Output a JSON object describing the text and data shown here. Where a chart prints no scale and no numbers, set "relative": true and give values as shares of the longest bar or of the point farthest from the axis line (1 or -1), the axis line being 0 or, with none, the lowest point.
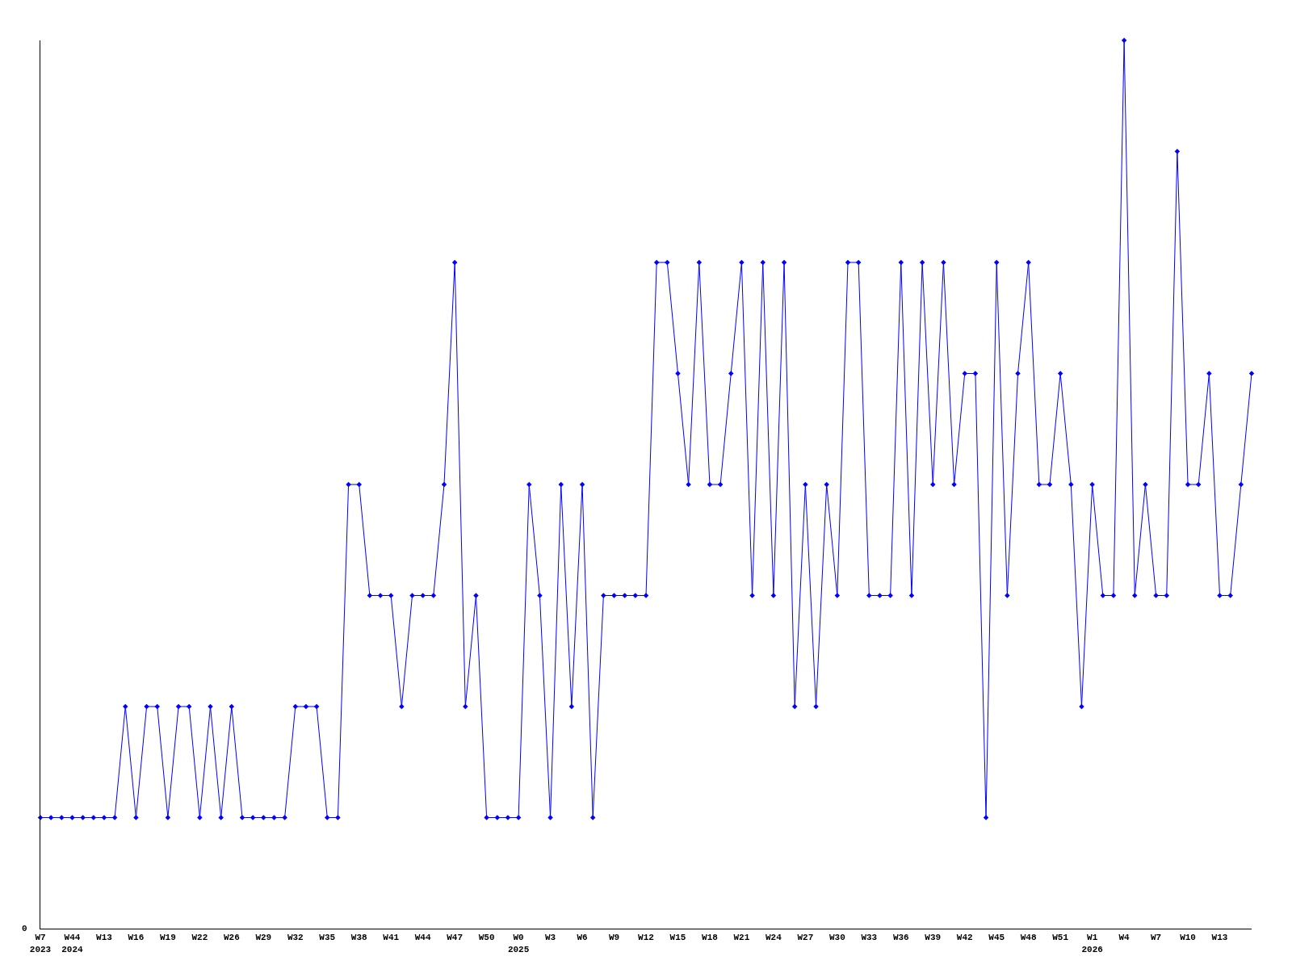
{
  "chart_data": {
    "type": "line",
    "relative": true,
    "categories": [
      "W7\n2023",
      null,
      null,
      "W44\n2024",
      null,
      null,
      "W13",
      null,
      null,
      "W16",
      null,
      null,
      "W19",
      null,
      null,
      "W22",
      null,
      null,
      "W26",
      null,
      null,
      "W29",
      null,
      null,
      "W32",
      null,
      null,
      "W35",
      null,
      null,
      "W38",
      null,
      null,
      "W41",
      null,
      null,
      "W44",
      null,
      null,
      "W47",
      null,
      null,
      "W50",
      null,
      null,
      "W0\n2025",
      null,
      null,
      "W3",
      null,
      null,
      "W6",
      null,
      null,
      "W9",
      null,
      null,
      "W12",
      null,
      null,
      "W15",
      null,
      null,
      "W18",
      null,
      null,
      "W21",
      null,
      null,
      "W24",
      null,
      null,
      "W27",
      null,
      null,
      "W30",
      null,
      null,
      "W33",
      null,
      null,
      "W36",
      null,
      null,
      "W39",
      null,
      null,
      "W42",
      null,
      null,
      "W45",
      null,
      null,
      "W48",
      null,
      null,
      "W51",
      null,
      null,
      "W1\n2026",
      null,
      null,
      "W4",
      null,
      null,
      "W7",
      null,
      null,
      "W10",
      null,
      null,
      "W13",
      null,
      null,
      null
    ],
    "series": [
      {
        "color": "#0000ff",
        "values": [
          0.125,
          0.125,
          0.125,
          0.125,
          0.125,
          0.125,
          0.125,
          0.125,
          0.25,
          0.125,
          0.25,
          0.25,
          0.125,
          0.25,
          0.25,
          0.125,
          0.25,
          0.125,
          0.25,
          0.125,
          0.125,
          0.125,
          0.125,
          0.125,
          0.25,
          0.25,
          0.25,
          0.125,
          0.125,
          0.5,
          0.5,
          0.375,
          0.375,
          0.375,
          0.25,
          0.375,
          0.375,
          0.375,
          0.5,
          0.75,
          0.25,
          0.375,
          0.125,
          0.125,
          0.125,
          0.125,
          0.5,
          0.375,
          0.125,
          0.5,
          0.25,
          0.5,
          0.125,
          0.375,
          0.375,
          0.375,
          0.375,
          0.375,
          0.75,
          0.75,
          0.625,
          0.5,
          0.75,
          0.5,
          0.5,
          0.625,
          0.75,
          0.375,
          0.75,
          0.375,
          0.75,
          0.25,
          0.5,
          0.25,
          0.5,
          0.375,
          0.75,
          0.75,
          0.375,
          0.375,
          0.375,
          0.75,
          0.375,
          0.75,
          0.5,
          0.75,
          0.5,
          0.625,
          0.625,
          0.125,
          0.75,
          0.375,
          0.625,
          0.75,
          0.5,
          0.5,
          0.625,
          0.5,
          0.25,
          0.5,
          0.375,
          0.375,
          1,
          0.375,
          0.5,
          0.375,
          0.375,
          0.875,
          0.5,
          0.5,
          0.625,
          0.375,
          0.375,
          0.5,
          0.625
        ]
      }
    ],
    "annotations": [
      "0"
    ],
    "marker": "diamond",
    "line_style": "solid"
  }
}
